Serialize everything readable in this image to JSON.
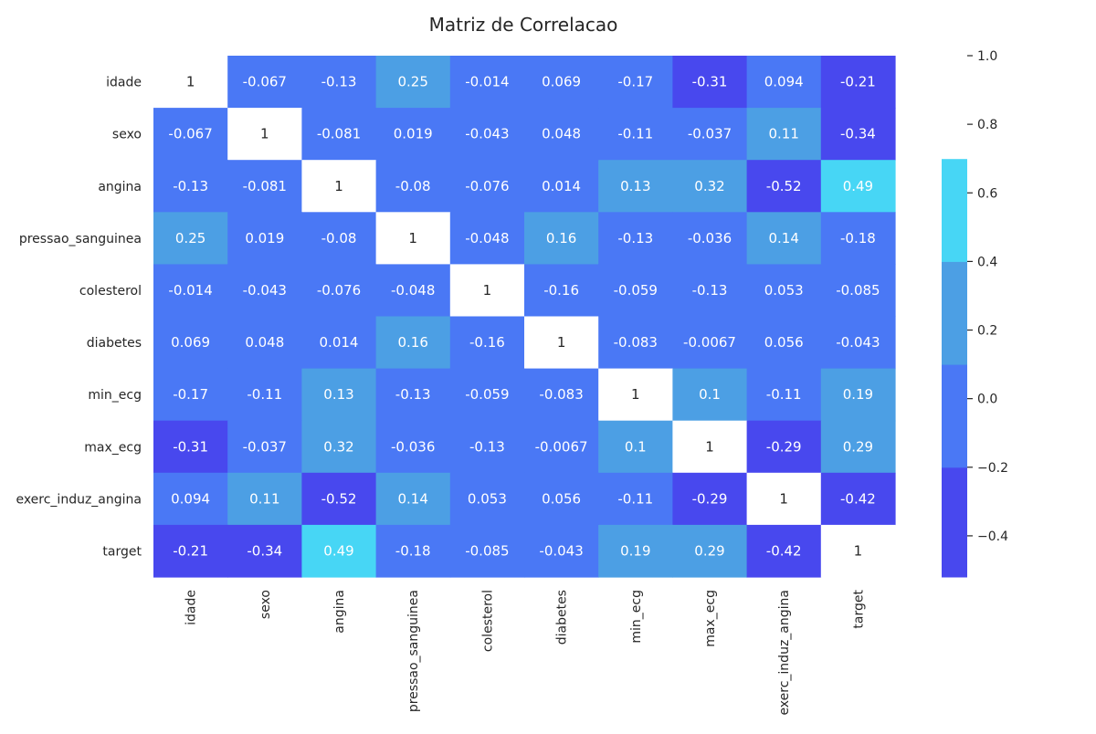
{
  "chart_data": {
    "type": "heatmap",
    "title": "Matriz de Correlacao",
    "xlabel": "",
    "ylabel": "",
    "row_labels": [
      "idade",
      "sexo",
      "angina",
      "pressao_sanguinea",
      "colesterol",
      "diabetes",
      "min_ecg",
      "max_ecg",
      "exerc_induz_angina",
      "target"
    ],
    "col_labels": [
      "idade",
      "sexo",
      "angina",
      "pressao_sanguinea",
      "colesterol",
      "diabetes",
      "min_ecg",
      "max_ecg",
      "exerc_induz_angina",
      "target"
    ],
    "values": [
      [
        1,
        -0.067,
        -0.13,
        0.25,
        -0.014,
        0.069,
        -0.17,
        -0.31,
        0.094,
        -0.21
      ],
      [
        -0.067,
        1,
        -0.081,
        0.019,
        -0.043,
        0.048,
        -0.11,
        -0.037,
        0.11,
        -0.34
      ],
      [
        -0.13,
        -0.081,
        1,
        -0.08,
        -0.076,
        0.014,
        0.13,
        0.32,
        -0.52,
        0.49
      ],
      [
        0.25,
        0.019,
        -0.08,
        1,
        -0.048,
        0.16,
        -0.13,
        -0.036,
        0.14,
        -0.18
      ],
      [
        -0.014,
        -0.043,
        -0.076,
        -0.048,
        1,
        -0.16,
        -0.059,
        -0.13,
        0.053,
        -0.085
      ],
      [
        0.069,
        0.048,
        0.014,
        0.16,
        -0.16,
        1,
        -0.083,
        -0.0067,
        0.056,
        -0.043
      ],
      [
        -0.17,
        -0.11,
        0.13,
        -0.13,
        -0.059,
        -0.083,
        1,
        0.1,
        -0.11,
        0.19
      ],
      [
        -0.31,
        -0.037,
        0.32,
        -0.036,
        -0.13,
        -0.0067,
        0.1,
        1,
        -0.29,
        0.29
      ],
      [
        0.094,
        0.11,
        -0.52,
        0.14,
        0.053,
        0.056,
        -0.11,
        -0.29,
        1,
        -0.42
      ],
      [
        -0.21,
        -0.34,
        0.49,
        -0.18,
        -0.085,
        -0.043,
        0.19,
        0.29,
        -0.42,
        1
      ]
    ],
    "labels": [
      [
        "1",
        "-0.067",
        "-0.13",
        "0.25",
        "-0.014",
        "0.069",
        "-0.17",
        "-0.31",
        "0.094",
        "-0.21"
      ],
      [
        "-0.067",
        "1",
        "-0.081",
        "0.019",
        "-0.043",
        "0.048",
        "-0.11",
        "-0.037",
        "0.11",
        "-0.34"
      ],
      [
        "-0.13",
        "-0.081",
        "1",
        "-0.08",
        "-0.076",
        "0.014",
        "0.13",
        "0.32",
        "-0.52",
        "0.49"
      ],
      [
        "0.25",
        "0.019",
        "-0.08",
        "1",
        "-0.048",
        "0.16",
        "-0.13",
        "-0.036",
        "0.14",
        "-0.18"
      ],
      [
        "-0.014",
        "-0.043",
        "-0.076",
        "-0.048",
        "1",
        "-0.16",
        "-0.059",
        "-0.13",
        "0.053",
        "-0.085"
      ],
      [
        "0.069",
        "0.048",
        "0.014",
        "0.16",
        "-0.16",
        "1",
        "-0.083",
        "-0.0067",
        "0.056",
        "-0.043"
      ],
      [
        "-0.17",
        "-0.11",
        "0.13",
        "-0.13",
        "-0.059",
        "-0.083",
        "1",
        "0.1",
        "-0.11",
        "0.19"
      ],
      [
        "-0.31",
        "-0.037",
        "0.32",
        "-0.036",
        "-0.13",
        "-0.0067",
        "0.1",
        "1",
        "-0.29",
        "0.29"
      ],
      [
        "0.094",
        "0.11",
        "-0.52",
        "0.14",
        "0.053",
        "0.056",
        "-0.11",
        "-0.29",
        "1",
        "-0.42"
      ],
      [
        "-0.21",
        "-0.34",
        "0.49",
        "-0.18",
        "-0.085",
        "-0.043",
        "0.19",
        "0.29",
        "-0.42",
        "1"
      ]
    ],
    "color_bins": [
      {
        "min": -0.52,
        "max": -0.2,
        "color": "#4848ee"
      },
      {
        "min": -0.2,
        "max": 0.1,
        "color": "#4a78f5"
      },
      {
        "min": 0.1,
        "max": 0.4,
        "color": "#4c9fe4"
      },
      {
        "min": 0.4,
        "max": 0.7,
        "color": "#47d6f5"
      },
      {
        "min": 0.7,
        "max": 1.0,
        "color": "#ffffff"
      }
    ],
    "colorbar": {
      "range": [
        -0.52,
        1.0
      ],
      "ticks": [
        -0.4,
        -0.2,
        0.0,
        0.2,
        0.4,
        0.6,
        0.8,
        1.0
      ],
      "tick_labels": [
        "−0.4",
        "−0.2",
        "0.0",
        "0.2",
        "0.4",
        "0.6",
        "0.8",
        "1.0"
      ],
      "placement": "right"
    },
    "text_color_light": "#ffffff",
    "text_color_dark": "#262626"
  }
}
